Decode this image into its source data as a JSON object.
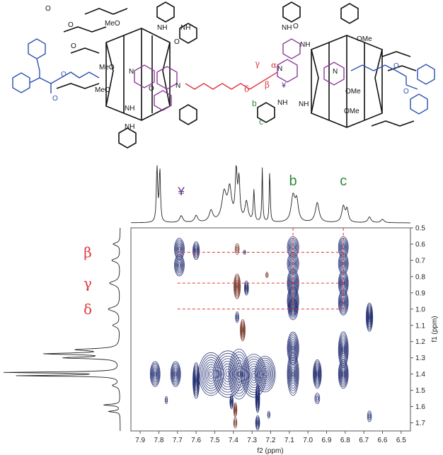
{
  "chart_data": {
    "type": "heatmap",
    "title": "",
    "xlabel": "f2 (ppm)",
    "ylabel": "f1 (ppm)",
    "xlim": [
      7.95,
      6.45
    ],
    "ylim": [
      0.5,
      1.75
    ],
    "x_ticks": [
      "7.9",
      "7.8",
      "7.7",
      "7.6",
      "7.5",
      "7.4",
      "7.3",
      "7.2",
      "7.1",
      "7.0",
      "6.9",
      "6.8",
      "6.7",
      "6.6",
      "6.5"
    ],
    "x_tick_values": [
      7.9,
      7.8,
      7.7,
      7.6,
      7.5,
      7.4,
      7.3,
      7.2,
      7.1,
      7.0,
      6.9,
      6.8,
      6.7,
      6.6,
      6.5
    ],
    "y_ticks": [
      "0.5",
      "0.6",
      "0.7",
      "0.8",
      "0.9",
      "1.0",
      "1.1",
      "1.2",
      "1.3",
      "1.4",
      "1.5",
      "1.6",
      "1.7"
    ],
    "y_tick_values": [
      0.5,
      0.6,
      0.7,
      0.8,
      0.9,
      1.0,
      1.1,
      1.2,
      1.3,
      1.4,
      1.5,
      1.6,
      1.7
    ],
    "top_peak_labels": [
      {
        "text": "¥",
        "x": 7.68,
        "color": "#5b2a86"
      },
      {
        "text": "b",
        "x": 7.08,
        "color": "#2e8b3a"
      },
      {
        "text": "c",
        "x": 6.81,
        "color": "#2e8b3a"
      }
    ],
    "left_peak_labels": [
      {
        "text": "β",
        "y": 0.65,
        "color": "#e0393e"
      },
      {
        "text": "γ",
        "y": 0.84,
        "color": "#e0393e"
      },
      {
        "text": "δ",
        "y": 1.0,
        "color": "#e0393e"
      }
    ],
    "guide_lines": {
      "vertical_x": [
        7.08,
        6.81
      ],
      "horizontal_y": [
        0.65,
        0.84,
        1.0
      ],
      "color": "#e0393e"
    },
    "spectrum_1h_x": [
      {
        "x": 7.81,
        "h": 1.0,
        "w": 0.004
      },
      {
        "x": 7.795,
        "h": 0.95,
        "w": 0.004
      },
      {
        "x": 7.68,
        "h": 0.12,
        "w": 0.01
      },
      {
        "x": 7.6,
        "h": 0.12,
        "w": 0.01
      },
      {
        "x": 7.52,
        "h": 0.2,
        "w": 0.012
      },
      {
        "x": 7.45,
        "h": 0.5,
        "w": 0.015
      },
      {
        "x": 7.42,
        "h": 0.55,
        "w": 0.012
      },
      {
        "x": 7.385,
        "h": 0.85,
        "w": 0.006
      },
      {
        "x": 7.37,
        "h": 0.7,
        "w": 0.006
      },
      {
        "x": 7.33,
        "h": 0.35,
        "w": 0.01
      },
      {
        "x": 7.29,
        "h": 0.55,
        "w": 0.004
      },
      {
        "x": 7.245,
        "h": 0.95,
        "w": 0.003
      },
      {
        "x": 7.205,
        "h": 0.95,
        "w": 0.003
      },
      {
        "x": 7.08,
        "h": 0.45,
        "w": 0.012
      },
      {
        "x": 7.06,
        "h": 0.35,
        "w": 0.01
      },
      {
        "x": 6.95,
        "h": 0.35,
        "w": 0.012
      },
      {
        "x": 6.81,
        "h": 0.28,
        "w": 0.01
      },
      {
        "x": 6.79,
        "h": 0.22,
        "w": 0.008
      },
      {
        "x": 6.67,
        "h": 0.1,
        "w": 0.01
      },
      {
        "x": 6.6,
        "h": 0.06,
        "w": 0.01
      }
    ],
    "spectrum_1h_y": [
      {
        "y": 0.6,
        "h": 0.06,
        "w": 0.01
      },
      {
        "y": 0.7,
        "h": 0.07,
        "w": 0.012
      },
      {
        "y": 0.84,
        "h": 0.09,
        "w": 0.015
      },
      {
        "y": 1.0,
        "h": 0.1,
        "w": 0.015
      },
      {
        "y": 1.1,
        "h": 0.06,
        "w": 0.012
      },
      {
        "y": 1.25,
        "h": 0.35,
        "w": 0.008
      },
      {
        "y": 1.275,
        "h": 0.6,
        "w": 0.006
      },
      {
        "y": 1.3,
        "h": 0.45,
        "w": 0.006
      },
      {
        "y": 1.39,
        "h": 1.0,
        "w": 0.004
      },
      {
        "y": 1.41,
        "h": 0.85,
        "w": 0.004
      },
      {
        "y": 1.47,
        "h": 0.06,
        "w": 0.01
      },
      {
        "y": 1.59,
        "h": 0.14,
        "w": 0.005
      },
      {
        "y": 1.63,
        "h": 0.1,
        "w": 0.005
      }
    ],
    "cross_peaks": [
      {
        "x": 7.82,
        "y": 1.4,
        "sx": 0.012,
        "sy": 0.035,
        "color": "#1f2a6e"
      },
      {
        "x": 7.71,
        "y": 1.4,
        "sx": 0.012,
        "sy": 0.035,
        "color": "#1f2a6e"
      },
      {
        "x": 7.69,
        "y": 0.63,
        "sx": 0.012,
        "sy": 0.03,
        "color": "#1f2a6e"
      },
      {
        "x": 7.69,
        "y": 0.73,
        "sx": 0.012,
        "sy": 0.03,
        "color": "#1f2a6e"
      },
      {
        "x": 7.6,
        "y": 0.64,
        "sx": 0.008,
        "sy": 0.025,
        "color": "#1f2a6e"
      },
      {
        "x": 7.6,
        "y": 1.44,
        "sx": 0.008,
        "sy": 0.05,
        "color": "#1f2a6e"
      },
      {
        "x": 7.52,
        "y": 1.4,
        "sx": 0.03,
        "sy": 0.06,
        "color": "#1f2a6e"
      },
      {
        "x": 7.43,
        "y": 1.4,
        "sx": 0.035,
        "sy": 0.065,
        "color": "#1f2a6e"
      },
      {
        "x": 7.37,
        "y": 1.4,
        "sx": 0.025,
        "sy": 0.07,
        "color": "#1f2a6e"
      },
      {
        "x": 7.29,
        "y": 1.41,
        "sx": 0.03,
        "sy": 0.06,
        "color": "#1f2a6e"
      },
      {
        "x": 7.23,
        "y": 1.4,
        "sx": 0.025,
        "sy": 0.05,
        "color": "#1f2a6e"
      },
      {
        "x": 7.38,
        "y": 0.63,
        "sx": 0.005,
        "sy": 0.015,
        "color": "#7a3b2e"
      },
      {
        "x": 7.38,
        "y": 0.86,
        "sx": 0.008,
        "sy": 0.035,
        "color": "#7a3b2e"
      },
      {
        "x": 7.33,
        "y": 0.87,
        "sx": 0.005,
        "sy": 0.02,
        "color": "#1f2a6e"
      },
      {
        "x": 7.35,
        "y": 1.13,
        "sx": 0.006,
        "sy": 0.03,
        "color": "#7a3b2e"
      },
      {
        "x": 7.38,
        "y": 1.05,
        "sx": 0.004,
        "sy": 0.015,
        "color": "#1f2a6e"
      },
      {
        "x": 7.08,
        "y": 0.62,
        "sx": 0.014,
        "sy": 0.03,
        "color": "#1f2a6e"
      },
      {
        "x": 7.08,
        "y": 0.72,
        "sx": 0.014,
        "sy": 0.03,
        "color": "#1f2a6e"
      },
      {
        "x": 7.08,
        "y": 0.84,
        "sx": 0.014,
        "sy": 0.04,
        "color": "#1f2a6e"
      },
      {
        "x": 7.08,
        "y": 0.95,
        "sx": 0.014,
        "sy": 0.04,
        "color": "#1f2a6e"
      },
      {
        "x": 7.08,
        "y": 1.0,
        "sx": 0.012,
        "sy": 0.03,
        "color": "#1f2a6e"
      },
      {
        "x": 7.08,
        "y": 1.24,
        "sx": 0.014,
        "sy": 0.045,
        "color": "#1f2a6e"
      },
      {
        "x": 7.08,
        "y": 1.4,
        "sx": 0.014,
        "sy": 0.06,
        "color": "#1f2a6e"
      },
      {
        "x": 6.95,
        "y": 1.4,
        "sx": 0.01,
        "sy": 0.04,
        "color": "#1f2a6e"
      },
      {
        "x": 6.95,
        "y": 1.55,
        "sx": 0.006,
        "sy": 0.015,
        "color": "#1f2a6e"
      },
      {
        "x": 6.81,
        "y": 0.62,
        "sx": 0.012,
        "sy": 0.03,
        "color": "#1f2a6e"
      },
      {
        "x": 6.81,
        "y": 0.72,
        "sx": 0.012,
        "sy": 0.03,
        "color": "#1f2a6e"
      },
      {
        "x": 6.81,
        "y": 0.84,
        "sx": 0.012,
        "sy": 0.035,
        "color": "#1f2a6e"
      },
      {
        "x": 6.81,
        "y": 0.96,
        "sx": 0.012,
        "sy": 0.035,
        "color": "#1f2a6e"
      },
      {
        "x": 6.81,
        "y": 1.25,
        "sx": 0.012,
        "sy": 0.05,
        "color": "#1f2a6e"
      },
      {
        "x": 6.81,
        "y": 1.4,
        "sx": 0.012,
        "sy": 0.04,
        "color": "#1f2a6e"
      },
      {
        "x": 6.67,
        "y": 1.05,
        "sx": 0.008,
        "sy": 0.04,
        "color": "#1f2a6e"
      },
      {
        "x": 6.67,
        "y": 1.66,
        "sx": 0.005,
        "sy": 0.015,
        "color": "#1f2a6e"
      },
      {
        "x": 7.27,
        "y": 1.55,
        "sx": 0.005,
        "sy": 0.04,
        "color": "#1f2a6e"
      },
      {
        "x": 7.27,
        "y": 1.7,
        "sx": 0.005,
        "sy": 0.02,
        "color": "#1f2a6e"
      },
      {
        "x": 7.41,
        "y": 1.57,
        "sx": 0.004,
        "sy": 0.02,
        "color": "#1f2a6e"
      },
      {
        "x": 7.39,
        "y": 1.62,
        "sx": 0.004,
        "sy": 0.02,
        "color": "#7a3b2e"
      },
      {
        "x": 7.39,
        "y": 1.7,
        "sx": 0.004,
        "sy": 0.015,
        "color": "#7a3b2e"
      },
      {
        "x": 7.76,
        "y": 1.56,
        "sx": 0.003,
        "sy": 0.01,
        "color": "#1f2a6e"
      },
      {
        "x": 7.21,
        "y": 1.65,
        "sx": 0.003,
        "sy": 0.01,
        "color": "#1f2a6e"
      },
      {
        "x": 7.22,
        "y": 0.79,
        "sx": 0.003,
        "sy": 0.008,
        "color": "#7a3b2e"
      },
      {
        "x": 7.34,
        "y": 0.65,
        "sx": 0.002,
        "sy": 0.006,
        "color": "#1f2a6e"
      }
    ]
  },
  "structure": {
    "labels": [
      {
        "id": "meo-1",
        "text": "MeO",
        "color": "#111111"
      },
      {
        "id": "meo-2",
        "text": "MeO",
        "color": "#111111"
      },
      {
        "id": "meo-3",
        "text": "MeO",
        "color": "#111111"
      },
      {
        "id": "ome-1",
        "text": "OMe",
        "color": "#111111"
      },
      {
        "id": "ome-2",
        "text": "OMe",
        "color": "#111111"
      },
      {
        "id": "ome-3",
        "text": "OMe",
        "color": "#111111"
      },
      {
        "id": "nh-1",
        "text": "NH",
        "color": "#111111"
      },
      {
        "id": "nh-2",
        "text": "NH",
        "color": "#111111"
      },
      {
        "id": "nh-3",
        "text": "NH",
        "color": "#111111"
      },
      {
        "id": "nh-4",
        "text": "NH",
        "color": "#111111"
      },
      {
        "id": "nh-5",
        "text": "NH",
        "color": "#111111"
      },
      {
        "id": "nh-6",
        "text": "NH",
        "color": "#111111"
      },
      {
        "id": "nh-7",
        "text": "NH",
        "color": "#111111"
      },
      {
        "id": "nh-8",
        "text": "NH",
        "color": "#111111"
      },
      {
        "id": "o-1",
        "text": "O",
        "color": "#111111"
      },
      {
        "id": "o-2",
        "text": "O",
        "color": "#111111"
      },
      {
        "id": "o-3",
        "text": "O",
        "color": "#111111"
      },
      {
        "id": "o-4",
        "text": "O",
        "color": "#111111"
      },
      {
        "id": "o-5",
        "text": "O",
        "color": "#111111"
      },
      {
        "id": "o-6",
        "text": "O",
        "color": "#111111"
      },
      {
        "id": "o-7",
        "text": "O",
        "color": "#2b4fb0"
      },
      {
        "id": "o-8",
        "text": "O",
        "color": "#2b4fb0"
      },
      {
        "id": "o-9",
        "text": "O",
        "color": "#2b4fb0"
      },
      {
        "id": "o-10",
        "text": "O",
        "color": "#2b4fb0"
      },
      {
        "id": "n-plus-1",
        "text": "N",
        "color": "#111111"
      },
      {
        "id": "n-plus-2",
        "text": "N",
        "color": "#111111"
      },
      {
        "id": "n-plus-3",
        "text": "N",
        "color": "#111111"
      },
      {
        "id": "n-plus-4",
        "text": "N",
        "color": "#111111"
      },
      {
        "id": "alpha",
        "text": "α",
        "color": "#e0393e"
      },
      {
        "id": "beta",
        "text": "β",
        "color": "#e0393e"
      },
      {
        "id": "gamma",
        "text": "γ",
        "color": "#e0393e"
      },
      {
        "id": "delta",
        "text": "δ",
        "color": "#e0393e"
      },
      {
        "id": "yen",
        "text": "¥",
        "color": "#5b2a86"
      },
      {
        "id": "b",
        "text": "b",
        "color": "#2e8b3a"
      },
      {
        "id": "c",
        "text": "c",
        "color": "#2e8b3a"
      }
    ]
  }
}
